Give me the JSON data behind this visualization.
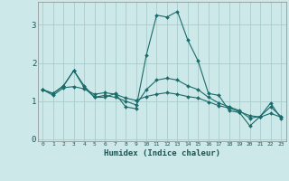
{
  "xlabel": "Humidex (Indice chaleur)",
  "ylabel": "",
  "bg_color": "#cce8e8",
  "grid_color": "#aacccc",
  "line_color": "#1a6b6b",
  "xlim": [
    -0.5,
    23.5
  ],
  "ylim": [
    -0.05,
    3.6
  ],
  "yticks": [
    0,
    1,
    2,
    3
  ],
  "xticks": [
    0,
    1,
    2,
    3,
    4,
    5,
    6,
    7,
    8,
    9,
    10,
    11,
    12,
    13,
    14,
    15,
    16,
    17,
    18,
    19,
    20,
    21,
    22,
    23
  ],
  "series": [
    [
      1.3,
      1.2,
      1.4,
      1.8,
      1.4,
      1.1,
      1.1,
      1.2,
      0.85,
      0.8,
      2.2,
      3.25,
      3.2,
      3.35,
      2.6,
      2.05,
      1.2,
      1.15,
      0.75,
      0.7,
      0.35,
      0.6,
      0.95,
      0.55
    ],
    [
      1.3,
      1.15,
      1.35,
      1.38,
      1.32,
      1.18,
      1.22,
      1.18,
      1.08,
      1.02,
      1.12,
      1.18,
      1.22,
      1.18,
      1.12,
      1.08,
      0.98,
      0.88,
      0.82,
      0.72,
      0.62,
      0.58,
      0.68,
      0.58
    ],
    [
      1.3,
      1.2,
      1.4,
      1.8,
      1.35,
      1.1,
      1.15,
      1.1,
      1.0,
      0.9,
      1.3,
      1.55,
      1.6,
      1.55,
      1.4,
      1.3,
      1.1,
      0.95,
      0.85,
      0.75,
      0.55,
      0.6,
      0.85,
      0.6
    ]
  ]
}
